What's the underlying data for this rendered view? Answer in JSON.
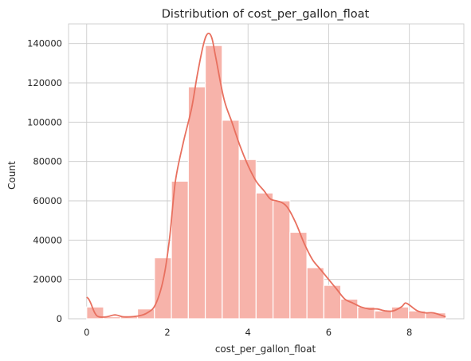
{
  "chart_data": {
    "type": "bar",
    "title": "Distribution of cost_per_gallon_float",
    "xlabel": "cost_per_gallon_float",
    "ylabel": "Count",
    "xlim": [
      -0.45,
      9.35
    ],
    "ylim": [
      0,
      150000
    ],
    "xticks": [
      0,
      2,
      4,
      6,
      8
    ],
    "yticks": [
      0,
      20000,
      40000,
      60000,
      80000,
      100000,
      120000,
      140000
    ],
    "grid": true,
    "colors": {
      "bar": "#f7b3aa",
      "kde": "#e8705f",
      "grid": "#cccccc"
    },
    "bins": [
      {
        "x0": 0.0,
        "x1": 0.42,
        "count": 6000
      },
      {
        "x0": 0.42,
        "x1": 0.84,
        "count": 1000
      },
      {
        "x0": 0.84,
        "x1": 1.26,
        "count": 1000
      },
      {
        "x0": 1.26,
        "x1": 1.68,
        "count": 5000
      },
      {
        "x0": 1.68,
        "x1": 2.1,
        "count": 31000
      },
      {
        "x0": 2.1,
        "x1": 2.52,
        "count": 70000
      },
      {
        "x0": 2.52,
        "x1": 2.94,
        "count": 118000
      },
      {
        "x0": 2.94,
        "x1": 3.36,
        "count": 139000
      },
      {
        "x0": 3.36,
        "x1": 3.78,
        "count": 101000
      },
      {
        "x0": 3.78,
        "x1": 4.2,
        "count": 81000
      },
      {
        "x0": 4.2,
        "x1": 4.62,
        "count": 64000
      },
      {
        "x0": 4.62,
        "x1": 5.04,
        "count": 60000
      },
      {
        "x0": 5.04,
        "x1": 5.46,
        "count": 44000
      },
      {
        "x0": 5.46,
        "x1": 5.88,
        "count": 26000
      },
      {
        "x0": 5.88,
        "x1": 6.3,
        "count": 17000
      },
      {
        "x0": 6.3,
        "x1": 6.72,
        "count": 10000
      },
      {
        "x0": 6.72,
        "x1": 7.14,
        "count": 6000
      },
      {
        "x0": 7.14,
        "x1": 7.56,
        "count": 4000
      },
      {
        "x0": 7.56,
        "x1": 7.98,
        "count": 6000
      },
      {
        "x0": 7.98,
        "x1": 8.4,
        "count": 4000
      },
      {
        "x0": 8.4,
        "x1": 8.9,
        "count": 3000
      }
    ],
    "kde": {
      "x": [
        0.0,
        0.05,
        0.1,
        0.2,
        0.3,
        0.5,
        0.7,
        0.9,
        1.1,
        1.3,
        1.5,
        1.7,
        1.9,
        2.05,
        2.2,
        2.4,
        2.6,
        2.75,
        2.9,
        3.0,
        3.1,
        3.2,
        3.4,
        3.6,
        3.8,
        4.0,
        4.2,
        4.4,
        4.55,
        4.7,
        4.85,
        5.0,
        5.2,
        5.4,
        5.6,
        5.8,
        6.0,
        6.2,
        6.4,
        6.6,
        6.8,
        7.0,
        7.2,
        7.4,
        7.6,
        7.8,
        7.9,
        8.0,
        8.2,
        8.4,
        8.6,
        8.9
      ],
      "y": [
        11000,
        10000,
        8000,
        3000,
        1000,
        1000,
        2000,
        1000,
        1000,
        1500,
        3000,
        7000,
        20000,
        40000,
        70000,
        90000,
        107000,
        125000,
        140000,
        145000,
        143000,
        133000,
        112000,
        100000,
        88000,
        78000,
        70000,
        65000,
        61000,
        60000,
        59000,
        56000,
        48000,
        38000,
        30000,
        25000,
        20000,
        15000,
        10000,
        8000,
        6000,
        5000,
        5000,
        4000,
        4000,
        6000,
        8000,
        7000,
        4000,
        3000,
        3000,
        1000
      ]
    }
  }
}
